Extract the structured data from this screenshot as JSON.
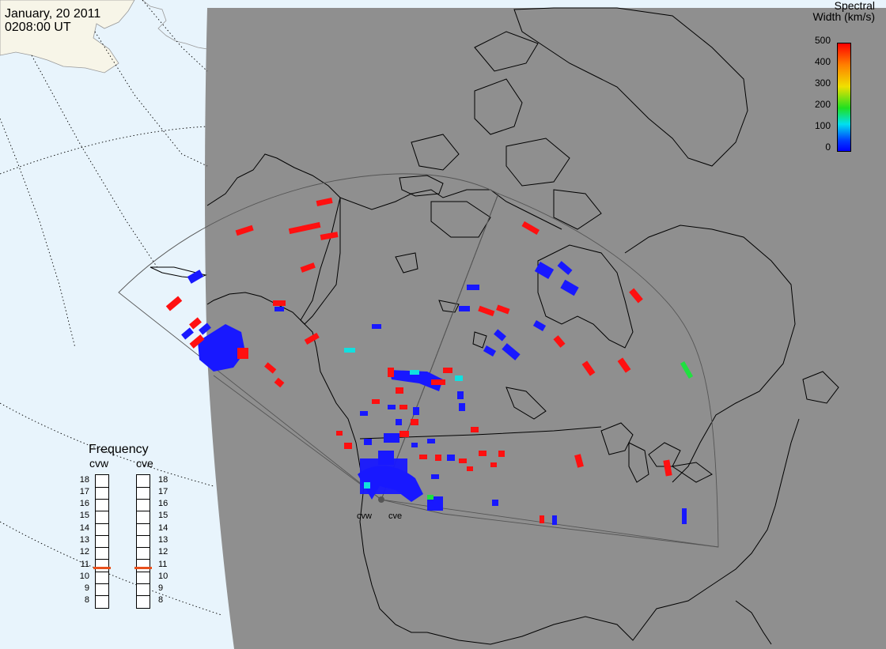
{
  "header": {
    "date": "January, 20 2011",
    "time": "0208:00 UT"
  },
  "colorbar": {
    "title_line1": "Spectral",
    "title_line2": "Width (km/s)",
    "ticks": [
      "500",
      "400",
      "300",
      "200",
      "100",
      "0"
    ],
    "min": 0,
    "max": 500
  },
  "frequency": {
    "title": "Frequency",
    "radars": [
      {
        "code": "cvw",
        "value_mhz": 10.8
      },
      {
        "code": "cve",
        "value_mhz": 10.8
      }
    ],
    "ticks": [
      "18",
      "17",
      "16",
      "15",
      "14",
      "13",
      "12",
      "11",
      "10",
      "9",
      "8"
    ],
    "indicator_color": "#e8501c"
  },
  "radar_site_labels": [
    "cvw",
    "cve"
  ],
  "colors": {
    "night_grey": "#8f8f8f",
    "ocean_day": "#e8f4fc",
    "land_day": "#f7f5e8",
    "velocity_red": "#ff1010",
    "velocity_blue": "#1818ff",
    "cyan": "#10e0e0",
    "green": "#20e040"
  }
}
